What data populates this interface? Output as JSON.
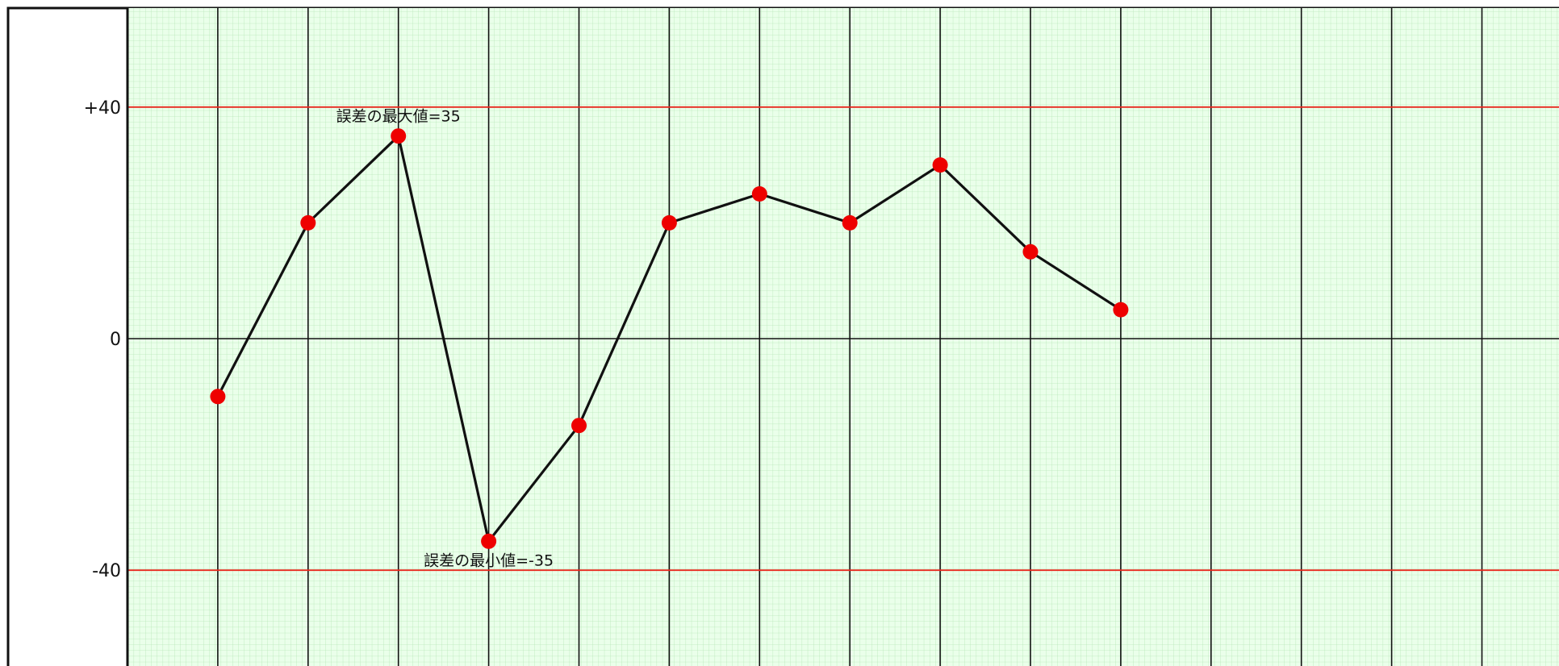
{
  "chart_data": {
    "type": "line",
    "title": "",
    "xlabel": "",
    "ylabel": "",
    "x": [
      1,
      2,
      3,
      4,
      5,
      6,
      7,
      8,
      9,
      10,
      11
    ],
    "xlim": [
      0,
      16
    ],
    "ylim": [
      -57,
      57
    ],
    "y_ticks": [
      {
        "value": 40,
        "label": "+40"
      },
      {
        "value": 0,
        "label": "0"
      },
      {
        "value": -40,
        "label": "-40"
      }
    ],
    "reference_lines": [
      40,
      -40
    ],
    "grid": true,
    "series": [
      {
        "name": "",
        "values": [
          -10,
          20,
          35,
          -35,
          -15,
          20,
          25,
          20,
          30,
          15,
          5
        ]
      }
    ],
    "annotations": [
      {
        "text": "誤差の最大値=35",
        "x": 3,
        "y": 35,
        "position": "above"
      },
      {
        "text": "誤差の最小値=-35",
        "x": 4,
        "y": -35,
        "position": "below"
      }
    ],
    "colors": {
      "background": "#ffffff",
      "plot_background": "#eaffea",
      "minor_grid": "#b8e8b8",
      "major_grid": "#111111",
      "reference_line": "#e8281e",
      "line": "#111111",
      "marker": "#ee0000"
    }
  }
}
